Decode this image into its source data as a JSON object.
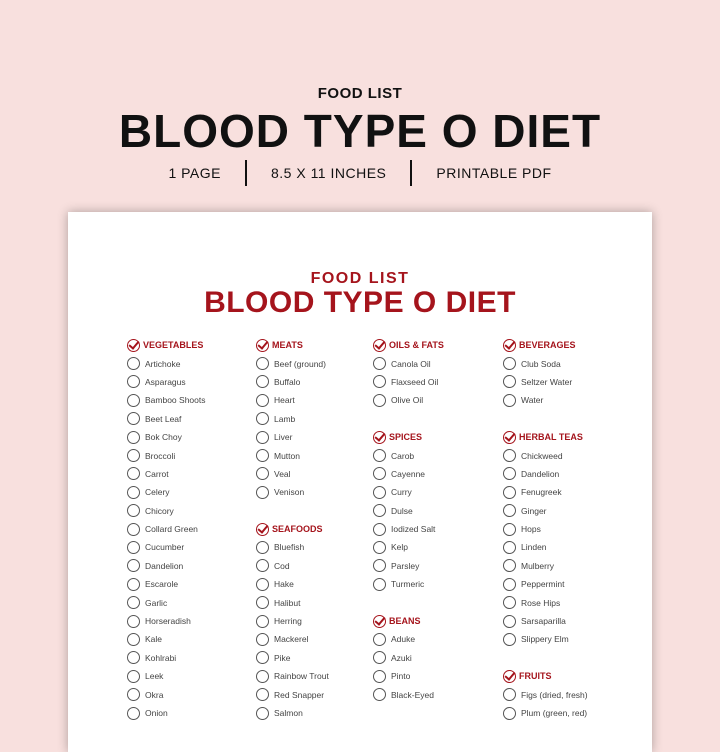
{
  "header": {
    "subtitle": "FOOD LIST",
    "title": "BLOOD TYPE O DIET",
    "meta": [
      "1 PAGE",
      "8.5 X 11 INCHES",
      "PRINTABLE PDF"
    ]
  },
  "paper": {
    "subtitle": "FOOD LIST",
    "title": "BLOOD TYPE O DIET"
  },
  "accent_color": "#a5141c",
  "columns": [
    [
      {
        "title": "VEGETABLES",
        "items": [
          "Artichoke",
          "Asparagus",
          "Bamboo Shoots",
          "Beet Leaf",
          "Bok Choy",
          "Broccoli",
          "Carrot",
          "Celery",
          "Chicory",
          "Collard Green",
          "Cucumber",
          "Dandelion",
          "Escarole",
          "Garlic",
          "Horseradish",
          "Kale",
          "Kohlrabi",
          "Leek",
          "Okra",
          "Onion"
        ]
      }
    ],
    [
      {
        "title": "MEATS",
        "items": [
          "Beef (ground)",
          "Buffalo",
          "Heart",
          "Lamb",
          "Liver",
          "Mutton",
          "Veal",
          "Venison"
        ]
      },
      {
        "title": "SEAFOODS",
        "items": [
          "Bluefish",
          "Cod",
          "Hake",
          "Halibut",
          "Herring",
          "Mackerel",
          "Pike",
          "Rainbow Trout",
          "Red Snapper",
          "Salmon"
        ]
      }
    ],
    [
      {
        "title": "OILS & FATS",
        "items": [
          "Canola Oil",
          "Flaxseed Oil",
          "Olive Oil"
        ]
      },
      {
        "title": "SPICES",
        "items": [
          "Carob",
          "Cayenne",
          "Curry",
          "Dulse",
          "Iodized Salt",
          "Kelp",
          "Parsley",
          "Turmeric"
        ]
      },
      {
        "title": "BEANS",
        "items": [
          "Aduke",
          "Azuki",
          "Pinto",
          "Black-Eyed"
        ]
      }
    ],
    [
      {
        "title": "BEVERAGES",
        "items": [
          "Club Soda",
          "Seltzer Water",
          "Water"
        ]
      },
      {
        "title": "HERBAL TEAS",
        "items": [
          "Chickweed",
          "Dandelion",
          "Fenugreek",
          "Ginger",
          "Hops",
          "Linden",
          "Mulberry",
          "Peppermint",
          "Rose Hips",
          "Sarsaparilla",
          "Slippery Elm"
        ]
      },
      {
        "title": "FRUITS",
        "items": [
          "Figs (dried, fresh)",
          "Plum (green, red)"
        ]
      }
    ]
  ]
}
